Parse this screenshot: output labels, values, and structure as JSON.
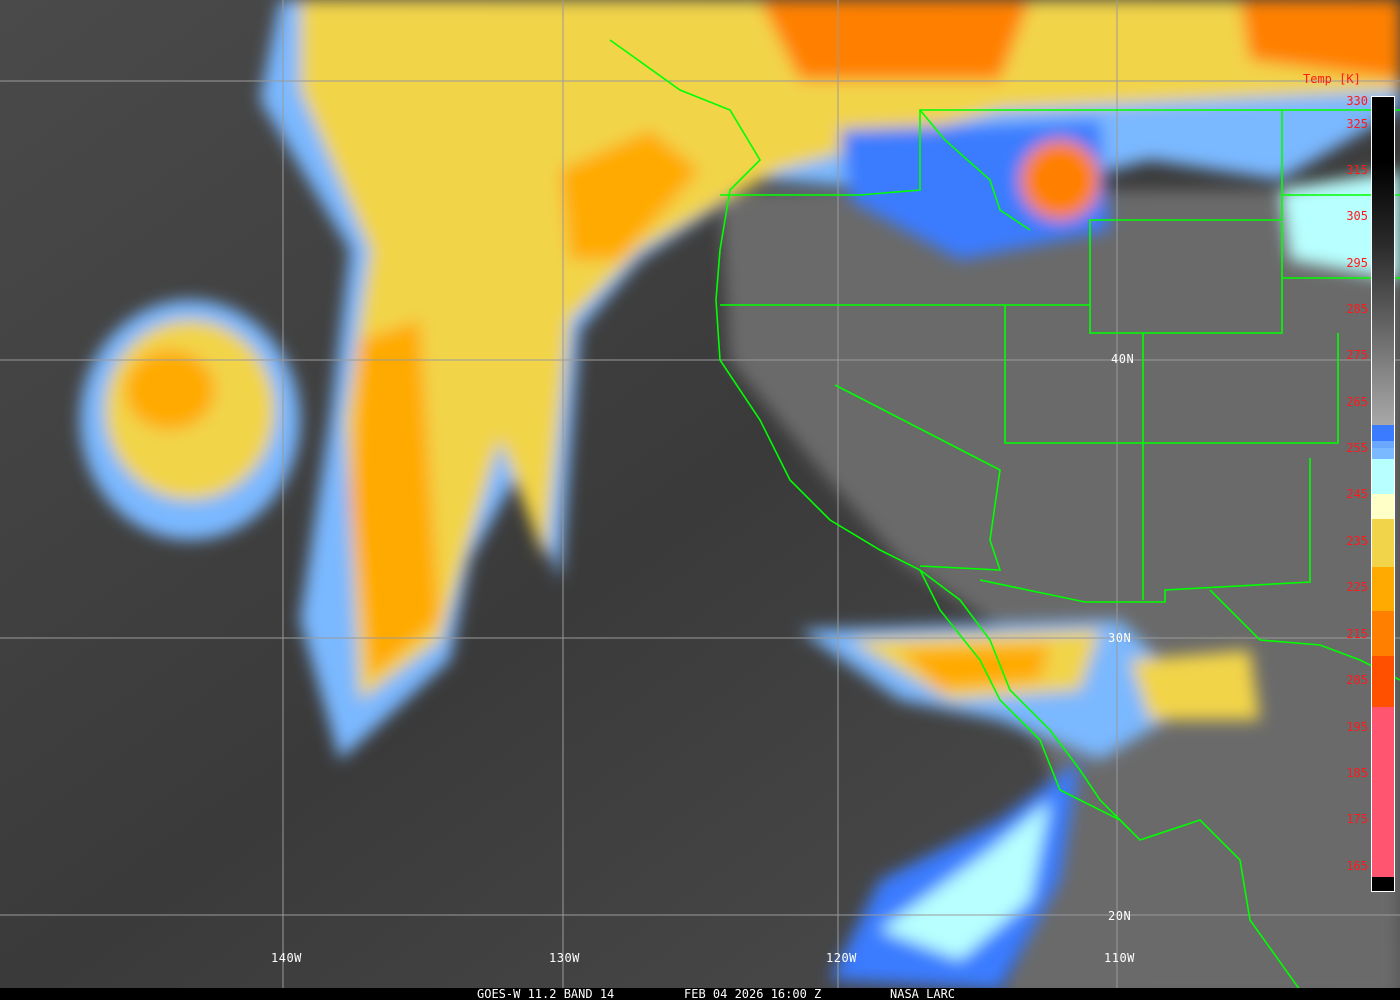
{
  "caption": {
    "satellite": "GOES-W 11.2 BAND 14",
    "datetime": "FEB 04 2026 16:00 Z",
    "source": "NASA LARC"
  },
  "grid_labels": {
    "longitudes": [
      "140W",
      "130W",
      "120W",
      "110W"
    ],
    "latitudes": [
      "40N",
      "30N",
      "20N"
    ]
  },
  "colorbar": {
    "title": "Temp [K]",
    "ticks": [
      "330",
      "325",
      "315",
      "305",
      "295",
      "285",
      "275",
      "265",
      "255",
      "245",
      "235",
      "225",
      "215",
      "205",
      "195",
      "185",
      "175",
      "165"
    ],
    "colors": {
      "blue": "#3a7bff",
      "light_blue": "#7ab8ff",
      "cyan": "#b8ffff",
      "cream": "#ffffc8",
      "yellow": "#f2d44a",
      "orange": "#ffaa00",
      "dark_orange": "#ff8000",
      "red_orange": "#ff5000",
      "pink": "#ff5570"
    }
  },
  "overlay_color": "#00ff00"
}
